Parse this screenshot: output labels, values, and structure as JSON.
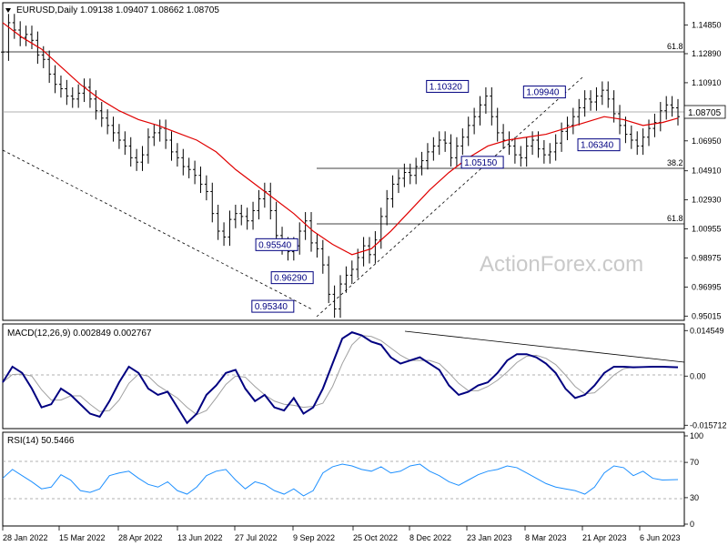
{
  "header": {
    "symbol": "EURUSD,Daily",
    "ohlc": "1.09138 1.09407 1.08662 1.08705"
  },
  "watermark": "ActionForex.com",
  "colors": {
    "candle": "#000000",
    "ma": "#e00000",
    "macd": "#000080",
    "signal": "#a0a0a0",
    "rsi": "#1e90ff",
    "current_bg": "#ffffff"
  },
  "chart_data": [
    {
      "type": "line",
      "panel": "price",
      "title": "EURUSD,Daily",
      "x_tick_labels": [
        "28 Jan 2022",
        "15 Mar 2022",
        "28 Apr 2022",
        "13 Jun 2022",
        "27 Jul 2022",
        "9 Sep 2022",
        "25 Oct 2022",
        "8 Dec 2022",
        "23 Jan 2023",
        "8 Mar 2023",
        "21 Apr 2023",
        "6 Jun 2023"
      ],
      "y_tick_labels": [
        "1.14850",
        "1.12890",
        "1.10910",
        "1.08705",
        "1.06950",
        "1.04910",
        "1.02930",
        "1.00955",
        "0.98975",
        "0.96995",
        "0.95015"
      ],
      "ylim": [
        0.9485,
        1.1605
      ],
      "current_price": "1.08705",
      "series": [
        {
          "name": "",
          "x": [
            0,
            3,
            6,
            9,
            12,
            15,
            18,
            21,
            24,
            27,
            30,
            33,
            36,
            39,
            42,
            45,
            48,
            51,
            54,
            57,
            60,
            63,
            66,
            69,
            72,
            75,
            78,
            81,
            84,
            87,
            90,
            93,
            96,
            99,
            102,
            105,
            108,
            111,
            114,
            117,
            120,
            123,
            126,
            129,
            132,
            135,
            138,
            141,
            144,
            147,
            150,
            153,
            156,
            159,
            162,
            165,
            168,
            171,
            174,
            177,
            180,
            183,
            186,
            189,
            192,
            195,
            198,
            201,
            204,
            207,
            210,
            213,
            216,
            219,
            222,
            225,
            228,
            231,
            234,
            237,
            240,
            243,
            246,
            249,
            252,
            255,
            258,
            261,
            264,
            267,
            270,
            273,
            276,
            279,
            282,
            285,
            288,
            291,
            294,
            297,
            300,
            303,
            306,
            309,
            312,
            315,
            318,
            321,
            324,
            327,
            330,
            333,
            336,
            339,
            342,
            345,
            348
          ],
          "values": [
            1.13,
            1.15,
            1.145,
            1.14,
            1.142,
            1.138,
            1.128,
            1.125,
            1.115,
            1.108,
            1.105,
            1.1,
            1.098,
            1.102,
            1.106,
            1.098,
            1.09,
            1.085,
            1.08,
            1.075,
            1.07,
            1.066,
            1.058,
            1.055,
            1.06,
            1.072,
            1.075,
            1.078,
            1.07,
            1.062,
            1.058,
            1.052,
            1.05,
            1.046,
            1.04,
            1.035,
            1.02,
            1.008,
            1.004,
            1.016,
            1.02,
            1.018,
            1.015,
            1.022,
            1.03,
            1.035,
            1.022,
            1.005,
            0.998,
            0.994,
            0.998,
            1.008,
            1.015,
            1.0,
            0.996,
            0.985,
            0.965,
            0.955,
            0.972,
            0.978,
            0.982,
            0.99,
            0.998,
            0.992,
            1.002,
            1.018,
            1.03,
            1.04,
            1.044,
            1.048,
            1.046,
            1.052,
            1.056,
            1.062,
            1.066,
            1.07,
            1.068,
            1.058,
            1.066,
            1.072,
            1.08,
            1.086,
            1.094,
            1.1,
            1.086,
            1.075,
            1.07,
            1.066,
            1.06,
            1.058,
            1.066,
            1.07,
            1.064,
            1.06,
            1.062,
            1.068,
            1.076,
            1.08,
            1.086,
            1.092,
            1.098,
            1.096,
            1.1,
            1.104,
            1.098,
            1.088,
            1.08,
            1.074,
            1.07,
            1.066,
            1.072,
            1.078,
            1.082,
            1.09,
            1.094,
            1.092,
            1.086
          ]
        },
        {
          "name": "",
          "x": [
            0,
            10,
            20,
            30,
            40,
            50,
            60,
            70,
            80,
            90,
            100,
            110,
            120,
            130,
            140,
            150,
            160,
            170,
            180,
            190,
            200,
            210,
            220,
            230,
            240,
            250,
            260,
            270,
            280,
            290,
            300,
            310,
            320,
            330,
            340,
            348
          ],
          "values": [
            1.15,
            1.14,
            1.132,
            1.12,
            1.108,
            1.098,
            1.09,
            1.084,
            1.08,
            1.075,
            1.07,
            1.062,
            1.05,
            1.04,
            1.03,
            1.02,
            1.008,
            0.999,
            0.992,
            0.996,
            1.008,
            1.022,
            1.036,
            1.048,
            1.058,
            1.066,
            1.07,
            1.072,
            1.074,
            1.078,
            1.082,
            1.086,
            1.084,
            1.08,
            1.082,
            1.085
          ]
        }
      ],
      "annotations": [
        {
          "text": "1.10320",
          "x": 240,
          "y": 1.1032
        },
        {
          "text": "1.09940",
          "x": 290,
          "y": 1.0994
        },
        {
          "text": "1.06340",
          "x": 318,
          "y": 1.0634
        },
        {
          "text": "1.05150",
          "x": 258,
          "y": 1.0515
        },
        {
          "text": "0.95540",
          "x": 152,
          "y": 0.9954
        },
        {
          "text": "0.96290",
          "x": 160,
          "y": 0.9729
        },
        {
          "text": "0.95340",
          "x": 150,
          "y": 0.9534
        }
      ],
      "level_labels": [
        {
          "text": "61.8",
          "y": 1.1285
        },
        {
          "text": "38.2",
          "y": 1.0491
        },
        {
          "text": "61.8",
          "y": 1.0098
        }
      ],
      "y_tick_values": [
        1.1485,
        1.1289,
        1.1091,
        1.08705,
        1.0695,
        1.0491,
        1.0293,
        1.00955,
        0.98975,
        0.96995,
        0.95015
      ],
      "grid": false
    },
    {
      "type": "line",
      "panel": "macd",
      "title": "MACD(12,26,9) 0.002849 0.002767",
      "ylim": [
        -0.0165,
        0.0155
      ],
      "y_tick_labels": [
        "0.014549",
        "0.00",
        "-0.015712"
      ],
      "y_tick_values": [
        0.014549,
        0.0,
        -0.015712
      ],
      "series": [
        {
          "name": "",
          "x": [
            0,
            5,
            10,
            15,
            20,
            25,
            30,
            35,
            40,
            45,
            50,
            55,
            60,
            65,
            70,
            75,
            80,
            85,
            90,
            95,
            100,
            105,
            110,
            115,
            120,
            125,
            130,
            135,
            140,
            145,
            150,
            155,
            160,
            165,
            170,
            175,
            180,
            185,
            190,
            195,
            200,
            205,
            210,
            215,
            220,
            225,
            230,
            235,
            240,
            245,
            250,
            255,
            260,
            265,
            270,
            275,
            280,
            285,
            290,
            295,
            300,
            305,
            310,
            315,
            320,
            325,
            330,
            335,
            340,
            348
          ],
          "values": [
            -0.002,
            0.003,
            0.001,
            -0.004,
            -0.01,
            -0.009,
            -0.004,
            -0.006,
            -0.009,
            -0.012,
            -0.013,
            -0.008,
            -0.002,
            0.003,
            0.001,
            -0.004,
            -0.006,
            -0.005,
            -0.01,
            -0.015,
            -0.012,
            -0.006,
            -0.003,
            0.001,
            0.002,
            -0.004,
            -0.008,
            -0.006,
            -0.01,
            -0.011,
            -0.007,
            -0.012,
            -0.01,
            -0.004,
            0.004,
            0.012,
            0.014,
            0.013,
            0.011,
            0.01,
            0.006,
            0.004,
            0.005,
            0.006,
            0.004,
            0.002,
            -0.003,
            -0.006,
            -0.005,
            -0.003,
            -0.002,
            0.001,
            0.005,
            0.007,
            0.007,
            0.006,
            0.004,
            0.001,
            -0.004,
            -0.007,
            -0.006,
            -0.003,
            0.001,
            0.003,
            0.003,
            0.0028,
            0.0029,
            0.003,
            0.003,
            0.0028
          ]
        }
      ]
    },
    {
      "type": "line",
      "panel": "rsi",
      "title": "RSI(14) 50.5466",
      "ylim": [
        0,
        100
      ],
      "y_tick_labels": [
        "100",
        "70",
        "30",
        "0"
      ],
      "y_tick_values": [
        100,
        70,
        30,
        0
      ],
      "series": [
        {
          "name": "",
          "x": [
            0,
            5,
            10,
            15,
            20,
            25,
            30,
            35,
            40,
            45,
            50,
            55,
            60,
            65,
            70,
            75,
            80,
            85,
            90,
            95,
            100,
            105,
            110,
            115,
            120,
            125,
            130,
            135,
            140,
            145,
            150,
            155,
            160,
            165,
            170,
            175,
            180,
            185,
            190,
            195,
            200,
            205,
            210,
            215,
            220,
            225,
            230,
            235,
            240,
            245,
            250,
            255,
            260,
            265,
            270,
            275,
            280,
            285,
            290,
            295,
            300,
            305,
            310,
            315,
            320,
            325,
            330,
            335,
            340,
            348
          ],
          "values": [
            52,
            62,
            55,
            48,
            40,
            42,
            56,
            50,
            38,
            36,
            40,
            55,
            58,
            60,
            52,
            45,
            42,
            48,
            38,
            34,
            42,
            55,
            60,
            62,
            50,
            40,
            48,
            45,
            38,
            34,
            40,
            32,
            38,
            58,
            65,
            68,
            66,
            62,
            60,
            65,
            58,
            60,
            66,
            68,
            60,
            55,
            48,
            44,
            50,
            56,
            60,
            62,
            66,
            64,
            58,
            52,
            46,
            42,
            40,
            38,
            34,
            42,
            58,
            66,
            64,
            55,
            60,
            52,
            50,
            50.5
          ]
        }
      ]
    }
  ]
}
